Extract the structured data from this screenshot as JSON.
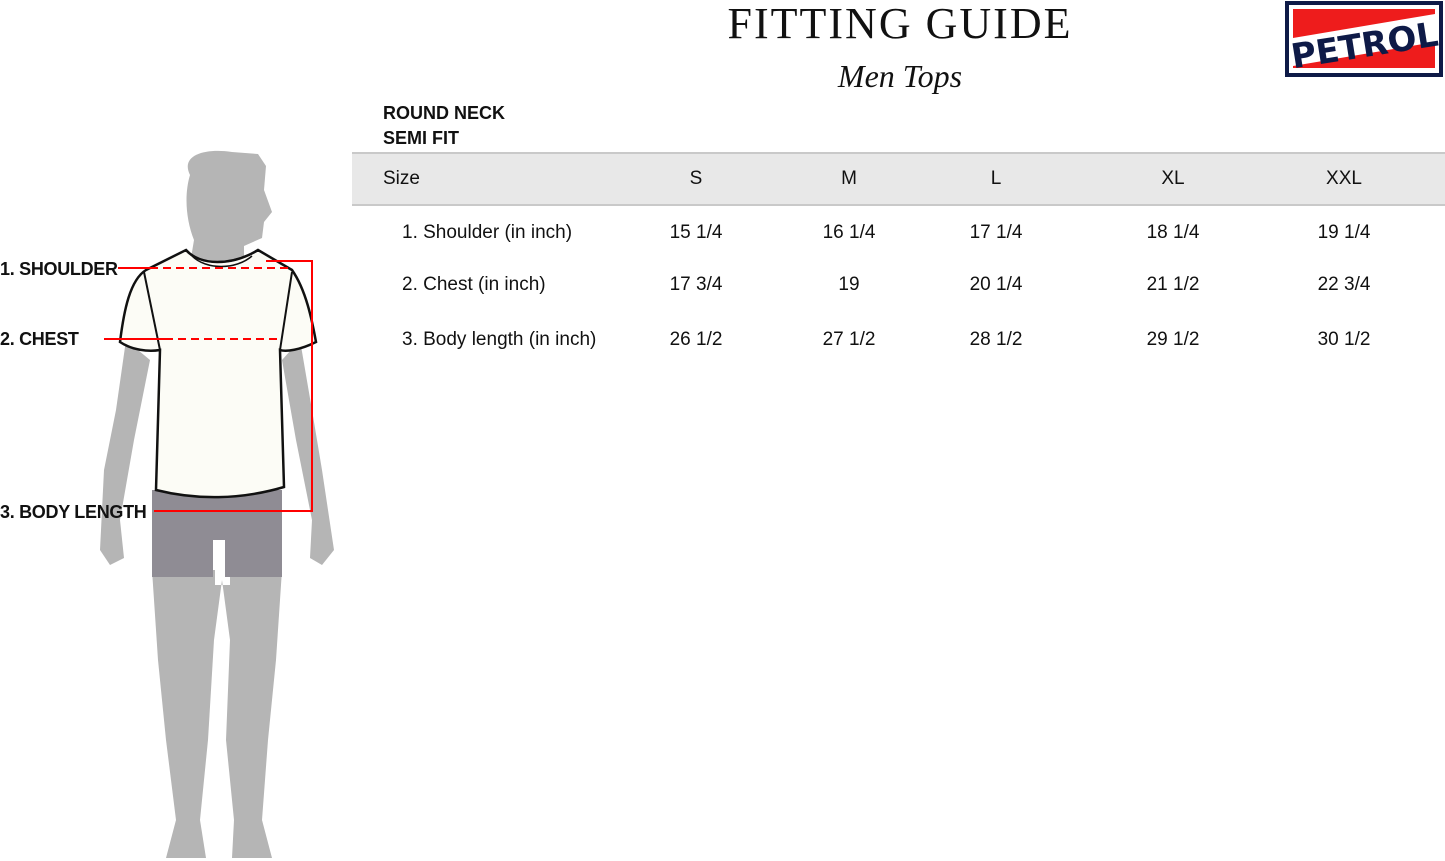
{
  "header": {
    "title": "FITTING GUIDE",
    "subtitle": "Men Tops"
  },
  "brand": {
    "logo_text": "PETROL",
    "colors": {
      "red": "#ee1c1c",
      "navy": "#0e1a47"
    }
  },
  "product": {
    "neck": "ROUND NECK",
    "fit": "SEMI FIT"
  },
  "table": {
    "header_label": "Size",
    "sizes": [
      "S",
      "M",
      "L",
      "XL",
      "XXL"
    ],
    "rows": [
      {
        "label": "1. Shoulder (in inch)",
        "values": [
          "15 1/4",
          "16 1/4",
          "17 1/4",
          "18 1/4",
          "19 1/4"
        ]
      },
      {
        "label": "2. Chest (in inch)",
        "values": [
          "17 3/4",
          "19",
          "20 1/4",
          "21 1/2",
          "22 3/4"
        ]
      },
      {
        "label": "3. Body length (in inch)",
        "values": [
          "26 1/2",
          "27 1/2",
          "28 1/2",
          "29 1/2",
          "30 1/2"
        ]
      }
    ]
  },
  "figure": {
    "labels": {
      "shoulder": "1. SHOULDER",
      "chest": "2. CHEST",
      "body_length": "3. BODY LENGTH"
    },
    "measure_line_color": "#ff0000"
  }
}
